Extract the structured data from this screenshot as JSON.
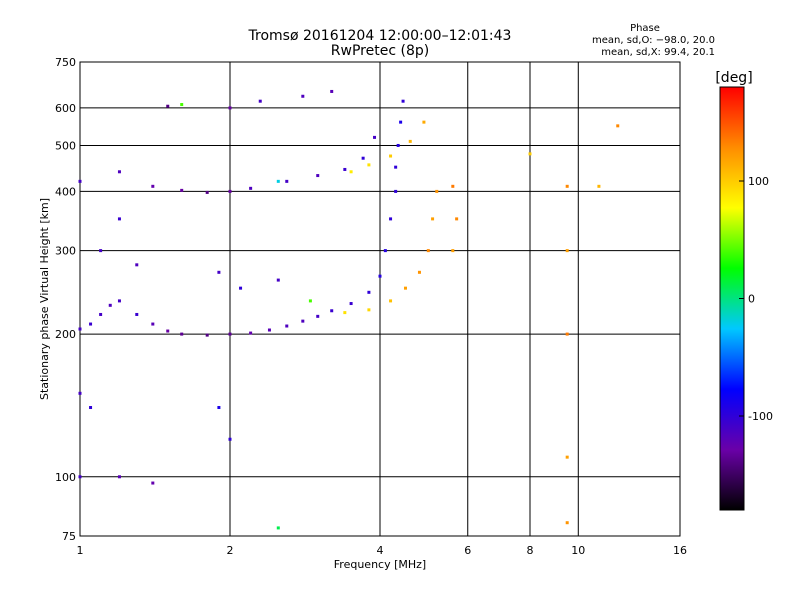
{
  "chart_data": {
    "type": "scatter",
    "title": "Tromsø 20161204 12:00:00–12:01:43",
    "subtitle": "RwPretec (8p)",
    "xlabel": "Frequency [MHz]",
    "ylabel": "Stationary phase Virtual Height [km]",
    "x_scale": "log",
    "y_scale": "log",
    "xlim": [
      1,
      16
    ],
    "ylim": [
      75,
      750
    ],
    "x_ticks": [
      "1",
      "2",
      "4",
      "6",
      "8",
      "10",
      "16"
    ],
    "y_ticks": [
      "75",
      "100",
      "200",
      "300",
      "400",
      "500",
      "600",
      "750"
    ],
    "grid": true,
    "phase_box": {
      "title": "Phase",
      "line_o": "mean, sd,O: −98.0, 20.0",
      "line_x": "mean, sd,X: 99.4, 20.1"
    },
    "colorbar": {
      "unit": "[deg]",
      "range": [
        -180,
        180
      ],
      "ticks": [
        "100",
        "0",
        "-100"
      ],
      "colors": [
        "#000000",
        "#6a00a8",
        "#0000ff",
        "#00c8ff",
        "#00ff00",
        "#ffff00",
        "#ff8c00",
        "#ff0000"
      ]
    },
    "series": [
      {
        "values": [
          {
            "x": 1.0,
            "y": 205,
            "p": -110
          },
          {
            "x": 1.05,
            "y": 210,
            "p": -105
          },
          {
            "x": 1.1,
            "y": 220,
            "p": -110
          },
          {
            "x": 1.15,
            "y": 230,
            "p": -115
          },
          {
            "x": 1.2,
            "y": 235,
            "p": -110
          },
          {
            "x": 1.3,
            "y": 220,
            "p": -105
          },
          {
            "x": 1.4,
            "y": 210,
            "p": -120
          },
          {
            "x": 1.5,
            "y": 203,
            "p": -130
          },
          {
            "x": 1.6,
            "y": 200,
            "p": -135
          },
          {
            "x": 1.8,
            "y": 199,
            "p": -140
          },
          {
            "x": 2.0,
            "y": 200,
            "p": -135
          },
          {
            "x": 2.2,
            "y": 201,
            "p": -125
          },
          {
            "x": 2.4,
            "y": 204,
            "p": -120
          },
          {
            "x": 2.6,
            "y": 208,
            "p": -115
          },
          {
            "x": 2.8,
            "y": 213,
            "p": -115
          },
          {
            "x": 3.0,
            "y": 218,
            "p": -110
          },
          {
            "x": 3.2,
            "y": 224,
            "p": -105
          },
          {
            "x": 3.5,
            "y": 232,
            "p": -105
          },
          {
            "x": 3.8,
            "y": 245,
            "p": -100
          },
          {
            "x": 4.0,
            "y": 265,
            "p": -95
          },
          {
            "x": 4.1,
            "y": 300,
            "p": -95
          },
          {
            "x": 4.2,
            "y": 350,
            "p": -100
          },
          {
            "x": 4.3,
            "y": 400,
            "p": -100
          },
          {
            "x": 4.3,
            "y": 450,
            "p": -100
          },
          {
            "x": 4.35,
            "y": 500,
            "p": -95
          },
          {
            "x": 4.4,
            "y": 560,
            "p": -90
          },
          {
            "x": 4.45,
            "y": 620,
            "p": -100
          },
          {
            "x": 1.0,
            "y": 420,
            "p": -110
          },
          {
            "x": 1.2,
            "y": 440,
            "p": -115
          },
          {
            "x": 1.4,
            "y": 410,
            "p": -125
          },
          {
            "x": 1.6,
            "y": 402,
            "p": -130
          },
          {
            "x": 1.8,
            "y": 398,
            "p": -140
          },
          {
            "x": 2.0,
            "y": 400,
            "p": -130
          },
          {
            "x": 2.2,
            "y": 406,
            "p": -115
          },
          {
            "x": 2.6,
            "y": 420,
            "p": -110
          },
          {
            "x": 3.0,
            "y": 432,
            "p": -115
          },
          {
            "x": 3.4,
            "y": 445,
            "p": -105
          },
          {
            "x": 3.7,
            "y": 470,
            "p": -100
          },
          {
            "x": 3.9,
            "y": 520,
            "p": -110
          },
          {
            "x": 1.5,
            "y": 605,
            "p": -140
          },
          {
            "x": 2.0,
            "y": 600,
            "p": -130
          },
          {
            "x": 2.3,
            "y": 620,
            "p": -110
          },
          {
            "x": 2.8,
            "y": 635,
            "p": -115
          },
          {
            "x": 3.2,
            "y": 650,
            "p": -120
          },
          {
            "x": 1.0,
            "y": 150,
            "p": -110
          },
          {
            "x": 1.05,
            "y": 140,
            "p": -100
          },
          {
            "x": 1.0,
            "y": 100,
            "p": -110
          },
          {
            "x": 1.2,
            "y": 100,
            "p": -120
          },
          {
            "x": 1.4,
            "y": 97,
            "p": -125
          },
          {
            "x": 1.9,
            "y": 140,
            "p": -90
          },
          {
            "x": 2.0,
            "y": 120,
            "p": -100
          },
          {
            "x": 1.1,
            "y": 300,
            "p": -110
          },
          {
            "x": 1.2,
            "y": 350,
            "p": -105
          },
          {
            "x": 1.3,
            "y": 280,
            "p": -115
          },
          {
            "x": 1.9,
            "y": 270,
            "p": -110
          },
          {
            "x": 2.1,
            "y": 250,
            "p": -100
          },
          {
            "x": 2.5,
            "y": 260,
            "p": -110
          },
          {
            "x": 3.4,
            "y": 222,
            "p": 90
          },
          {
            "x": 3.8,
            "y": 225,
            "p": 95
          },
          {
            "x": 4.2,
            "y": 235,
            "p": 105
          },
          {
            "x": 4.5,
            "y": 250,
            "p": 120
          },
          {
            "x": 4.8,
            "y": 270,
            "p": 125
          },
          {
            "x": 5.0,
            "y": 300,
            "p": 130
          },
          {
            "x": 5.1,
            "y": 350,
            "p": 120
          },
          {
            "x": 5.2,
            "y": 400,
            "p": 125
          },
          {
            "x": 5.6,
            "y": 300,
            "p": 120
          },
          {
            "x": 5.7,
            "y": 350,
            "p": 130
          },
          {
            "x": 5.6,
            "y": 410,
            "p": 135
          },
          {
            "x": 3.5,
            "y": 440,
            "p": 85
          },
          {
            "x": 3.8,
            "y": 455,
            "p": 90
          },
          {
            "x": 4.2,
            "y": 475,
            "p": 100
          },
          {
            "x": 4.6,
            "y": 510,
            "p": 110
          },
          {
            "x": 4.9,
            "y": 560,
            "p": 115
          },
          {
            "x": 9.5,
            "y": 410,
            "p": 130
          },
          {
            "x": 9.5,
            "y": 300,
            "p": 120
          },
          {
            "x": 9.5,
            "y": 200,
            "p": 135
          },
          {
            "x": 9.5,
            "y": 110,
            "p": 120
          },
          {
            "x": 9.5,
            "y": 80,
            "p": 125
          },
          {
            "x": 12.0,
            "y": 550,
            "p": 130
          },
          {
            "x": 11.0,
            "y": 410,
            "p": 110
          },
          {
            "x": 8.0,
            "y": 480,
            "p": 100
          },
          {
            "x": 2.9,
            "y": 235,
            "p": 40
          },
          {
            "x": 2.5,
            "y": 78,
            "p": 10
          },
          {
            "x": 1.6,
            "y": 610,
            "p": 40
          },
          {
            "x": 2.5,
            "y": 420,
            "p": -20
          }
        ]
      }
    ]
  }
}
